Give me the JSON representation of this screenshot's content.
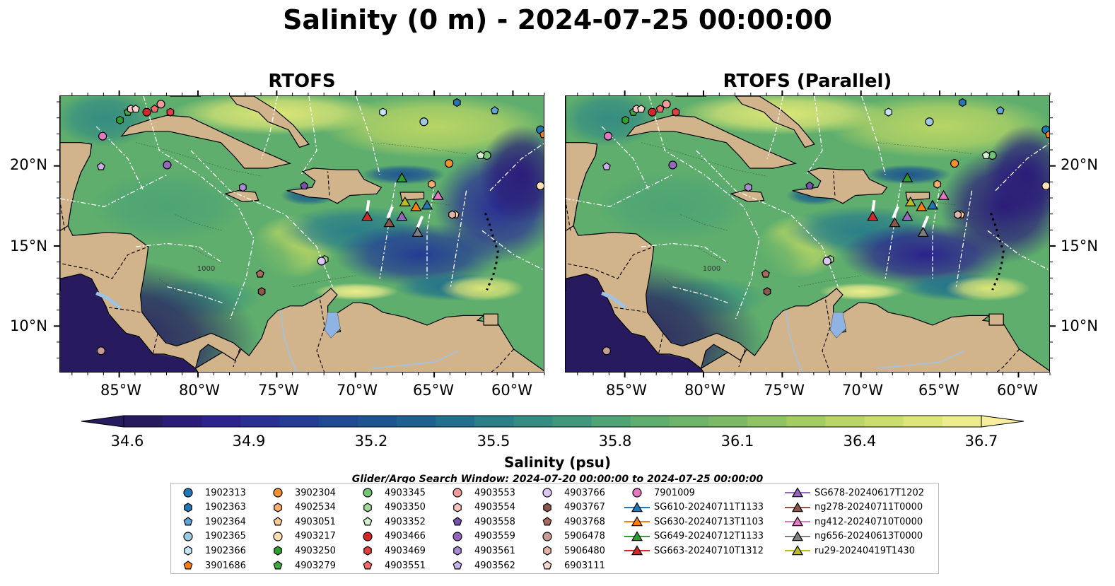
{
  "title": "Salinity (0 m) - 2024-07-25 00:00:00",
  "panels": [
    {
      "title": "RTOFS"
    },
    {
      "title": "RTOFS (Parallel)"
    }
  ],
  "lat_labels": [
    "20°N",
    "15°N",
    "10°N"
  ],
  "lon_labels": [
    "85°W",
    "80°W",
    "75°W",
    "70°W",
    "65°W",
    "60°W"
  ],
  "contour_label": "1000",
  "colorbar": {
    "label": "Salinity (psu)",
    "ticks": [
      "34.6",
      "34.9",
      "35.2",
      "35.5",
      "35.8",
      "36.1",
      "36.4",
      "36.7"
    ],
    "colors": [
      "#271a5f",
      "#2b1c79",
      "#2b228d",
      "#2a2f94",
      "#243c93",
      "#1f4a93",
      "#1e5591",
      "#1e618f",
      "#21708d",
      "#2b7f89",
      "#358c82",
      "#3f987b",
      "#4ea474",
      "#5fae6d",
      "#6db36a",
      "#7bb967",
      "#8fc364",
      "#a3cc63",
      "#b8d565",
      "#cbde6b",
      "#dde676",
      "#eeec8c"
    ],
    "extend_min_color": "#271a5f",
    "extend_max_color": "#f7ee9c"
  },
  "search_window": "Glider/Argo Search Window: 2024-07-20 00:00:00 to 2024-07-25 00:00:00",
  "legend": [
    {
      "label": "1902313",
      "marker": "circle",
      "color": "#1f77b4"
    },
    {
      "label": "1902363",
      "marker": "hexagon",
      "color": "#1f77b4"
    },
    {
      "label": "1902364",
      "marker": "pentagon",
      "color": "#5fa3d9"
    },
    {
      "label": "1902365",
      "marker": "circle",
      "color": "#9ecae1"
    },
    {
      "label": "1902366",
      "marker": "hexagon",
      "color": "#c6e5f5"
    },
    {
      "label": "3901686",
      "marker": "pentagon",
      "color": "#ff7f0e"
    },
    {
      "label": "3902304",
      "marker": "circle",
      "color": "#f28e2b"
    },
    {
      "label": "4902534",
      "marker": "hexagon",
      "color": "#fdae6b"
    },
    {
      "label": "4903051",
      "marker": "pentagon",
      "color": "#fdcb94"
    },
    {
      "label": "4903217",
      "marker": "circle",
      "color": "#fee0b6"
    },
    {
      "label": "4903250",
      "marker": "hexagon",
      "color": "#2ca02c"
    },
    {
      "label": "4903279",
      "marker": "pentagon",
      "color": "#3fa93f"
    },
    {
      "label": "4903345",
      "marker": "circle",
      "color": "#74c476"
    },
    {
      "label": "4903350",
      "marker": "hexagon",
      "color": "#a1d99b"
    },
    {
      "label": "4903352",
      "marker": "pentagon",
      "color": "#d5f0cf"
    },
    {
      "label": "4903466",
      "marker": "circle",
      "color": "#d62728"
    },
    {
      "label": "4903469",
      "marker": "hexagon",
      "color": "#e04040"
    },
    {
      "label": "4903551",
      "marker": "pentagon",
      "color": "#f06a6a"
    },
    {
      "label": "4903553",
      "marker": "circle",
      "color": "#f29b9b"
    },
    {
      "label": "4903554",
      "marker": "hexagon",
      "color": "#fbc4c4"
    },
    {
      "label": "4903558",
      "marker": "pentagon",
      "color": "#7b52ab"
    },
    {
      "label": "4903559",
      "marker": "circle",
      "color": "#9467bd"
    },
    {
      "label": "4903561",
      "marker": "hexagon",
      "color": "#a98bd4"
    },
    {
      "label": "4903562",
      "marker": "pentagon",
      "color": "#c5b0e8"
    },
    {
      "label": "4903766",
      "marker": "circle",
      "color": "#dcc6f5"
    },
    {
      "label": "4903767",
      "marker": "hexagon",
      "color": "#8c564b"
    },
    {
      "label": "4903768",
      "marker": "pentagon",
      "color": "#a86c5f"
    },
    {
      "label": "5906478",
      "marker": "circle",
      "color": "#c49c94"
    },
    {
      "label": "5906480",
      "marker": "hexagon",
      "color": "#e2b3a8"
    },
    {
      "label": "6903111",
      "marker": "pentagon",
      "color": "#f7d4cc"
    },
    {
      "label": "7901009",
      "marker": "circle",
      "color": "#e377c2"
    },
    {
      "label": "SG610-20240711T1133",
      "marker": "triangle",
      "color": "#1f77b4"
    },
    {
      "label": "SG630-20240713T1103",
      "marker": "triangle",
      "color": "#ff7f0e"
    },
    {
      "label": "SG649-20240712T1133",
      "marker": "triangle",
      "color": "#2ca02c"
    },
    {
      "label": "SG663-20240710T1312",
      "marker": "triangle",
      "color": "#d62728"
    },
    {
      "label": "SG678-20240617T1202",
      "marker": "triangle",
      "color": "#9467bd"
    },
    {
      "label": "ng278-20240711T0000",
      "marker": "triangle",
      "color": "#8c564b"
    },
    {
      "label": "ng412-20240710T0000",
      "marker": "triangle",
      "color": "#e377c2"
    },
    {
      "label": "ng656-20240613T0000",
      "marker": "triangle",
      "color": "#7f7f7f"
    },
    {
      "label": "ru29-20240419T1430",
      "marker": "triangle",
      "color": "#bcbd22"
    }
  ],
  "map_markers": [
    {
      "id": "1902313",
      "lon": -58.3,
      "lat": 22.3
    },
    {
      "id": "1902363",
      "lon": -63.6,
      "lat": 24.0
    },
    {
      "id": "1902364",
      "lon": -61.2,
      "lat": 23.5
    },
    {
      "id": "1902365",
      "lon": -65.7,
      "lat": 22.8
    },
    {
      "id": "1902366",
      "lon": -68.3,
      "lat": 23.4
    },
    {
      "id": "3901686",
      "lon": -58.1,
      "lat": 22.0
    },
    {
      "id": "3902304",
      "lon": -64.1,
      "lat": 20.2
    },
    {
      "id": "4902534",
      "lon": -65.2,
      "lat": 18.9
    },
    {
      "id": "4903051",
      "lon": -63.7,
      "lat": 17.0
    },
    {
      "id": "4903217",
      "lon": -58.3,
      "lat": 18.8
    },
    {
      "id": "4903250",
      "lon": -85.0,
      "lat": 22.9
    },
    {
      "id": "4903279",
      "lon": -84.5,
      "lat": 23.4
    },
    {
      "id": "4903345",
      "lon": -61.7,
      "lat": 20.7
    },
    {
      "id": "4903350",
      "lon": -72.0,
      "lat": 14.2
    },
    {
      "id": "4903352",
      "lon": -62.1,
      "lat": 20.7
    },
    {
      "id": "4903466",
      "lon": -83.3,
      "lat": 23.4
    },
    {
      "id": "4903469",
      "lon": -81.8,
      "lat": 23.4
    },
    {
      "id": "4903551",
      "lon": -82.8,
      "lat": 23.6
    },
    {
      "id": "4903553",
      "lon": -82.4,
      "lat": 23.9
    },
    {
      "id": "4903554",
      "lon": -84.3,
      "lat": 23.6
    },
    {
      "id": "4903558",
      "lon": -73.3,
      "lat": 18.8
    },
    {
      "id": "4903559",
      "lon": -82.0,
      "lat": 20.1
    },
    {
      "id": "4903561",
      "lon": -77.2,
      "lat": 18.7
    },
    {
      "id": "4903562",
      "lon": -86.2,
      "lat": 20.0
    },
    {
      "id": "4903766",
      "lon": -72.2,
      "lat": 14.1
    },
    {
      "id": "4903767",
      "lon": -76.0,
      "lat": 12.2
    },
    {
      "id": "4903768",
      "lon": -76.1,
      "lat": 13.3
    },
    {
      "id": "5906478",
      "lon": -86.2,
      "lat": 8.5
    },
    {
      "id": "5906480",
      "lon": -63.9,
      "lat": 17.0
    },
    {
      "id": "6903111",
      "lon": -84.0,
      "lat": 23.6
    },
    {
      "id": "7901009",
      "lon": -86.1,
      "lat": 21.9
    },
    {
      "id": "SG610-20240711T1133",
      "lon": -65.5,
      "lat": 17.6
    },
    {
      "id": "SG630-20240713T1103",
      "lon": -66.2,
      "lat": 17.5
    },
    {
      "id": "SG649-20240712T1133",
      "lon": -67.1,
      "lat": 19.3
    },
    {
      "id": "SG663-20240710T1312",
      "lon": -69.3,
      "lat": 16.9
    },
    {
      "id": "SG678-20240617T1202",
      "lon": -67.1,
      "lat": 16.9
    },
    {
      "id": "ng278-20240711T0000",
      "lon": -67.9,
      "lat": 16.5
    },
    {
      "id": "ng412-20240710T0000",
      "lon": -64.8,
      "lat": 18.2
    },
    {
      "id": "ng656-20240613T0000",
      "lon": -66.1,
      "lat": 15.9
    },
    {
      "id": "ru29-20240419T1430",
      "lon": -66.9,
      "lat": 17.8
    }
  ]
}
